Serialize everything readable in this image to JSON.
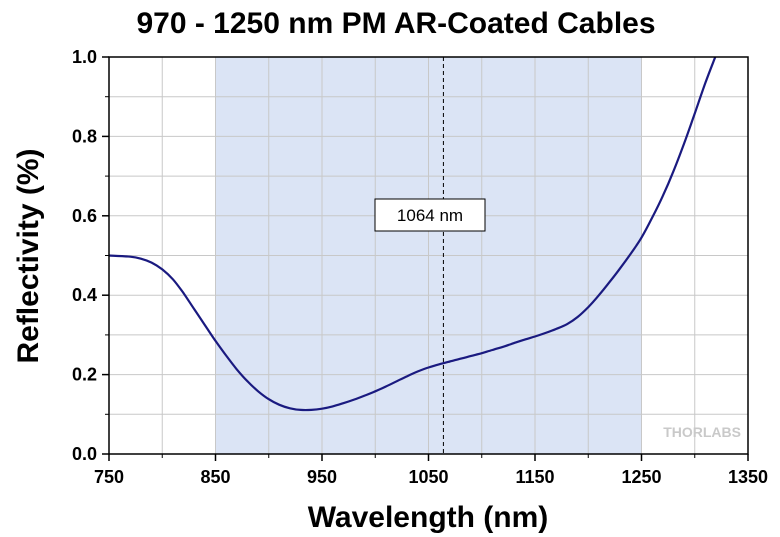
{
  "chart_data": {
    "type": "line",
    "title": "970 - 1250 nm PM AR-Coated Cables",
    "xlabel": "Wavelength (nm)",
    "ylabel": "Reflectivity (%)",
    "xlim": [
      750,
      1350
    ],
    "ylim": [
      0,
      1.0
    ],
    "x_ticks": [
      "750",
      "850",
      "950",
      "1050",
      "1150",
      "1250",
      "1350"
    ],
    "y_ticks": [
      "0.0",
      "0.2",
      "0.4",
      "0.6",
      "0.8",
      "1.0"
    ],
    "x_tick_values": [
      750,
      850,
      950,
      1050,
      1150,
      1250,
      1350
    ],
    "y_tick_values": [
      0.0,
      0.2,
      0.4,
      0.6,
      0.8,
      1.0
    ],
    "grid": true,
    "shaded_band": {
      "from": 850,
      "to": 1250,
      "color": "#dbe4f5"
    },
    "marker_line": {
      "x": 1064,
      "style": "dashed"
    },
    "annotation": {
      "text": "1064 nm"
    },
    "watermark": "THORLABS",
    "line_color": "#1a1a80",
    "series": [
      {
        "x": [
          750,
          770,
          780,
          790,
          800,
          810,
          820,
          830,
          840,
          850,
          860,
          870,
          880,
          890,
          900,
          910,
          920,
          930,
          940,
          950,
          960,
          970,
          980,
          990,
          1000,
          1010,
          1020,
          1030,
          1040,
          1050,
          1060,
          1070,
          1080,
          1090,
          1100,
          1110,
          1120,
          1130,
          1140,
          1150,
          1160,
          1170,
          1180,
          1190,
          1200,
          1210,
          1220,
          1230,
          1240,
          1250,
          1260,
          1270,
          1280,
          1290,
          1300,
          1310,
          1320
        ],
        "y": [
          0.5,
          0.497,
          0.492,
          0.482,
          0.465,
          0.44,
          0.405,
          0.365,
          0.325,
          0.285,
          0.248,
          0.213,
          0.183,
          0.158,
          0.138,
          0.124,
          0.115,
          0.111,
          0.111,
          0.114,
          0.12,
          0.128,
          0.137,
          0.147,
          0.158,
          0.17,
          0.183,
          0.196,
          0.208,
          0.218,
          0.226,
          0.233,
          0.24,
          0.247,
          0.254,
          0.262,
          0.27,
          0.279,
          0.288,
          0.296,
          0.305,
          0.315,
          0.327,
          0.345,
          0.37,
          0.4,
          0.433,
          0.468,
          0.505,
          0.545,
          0.595,
          0.65,
          0.712,
          0.782,
          0.858,
          0.935,
          1.005
        ]
      }
    ]
  }
}
